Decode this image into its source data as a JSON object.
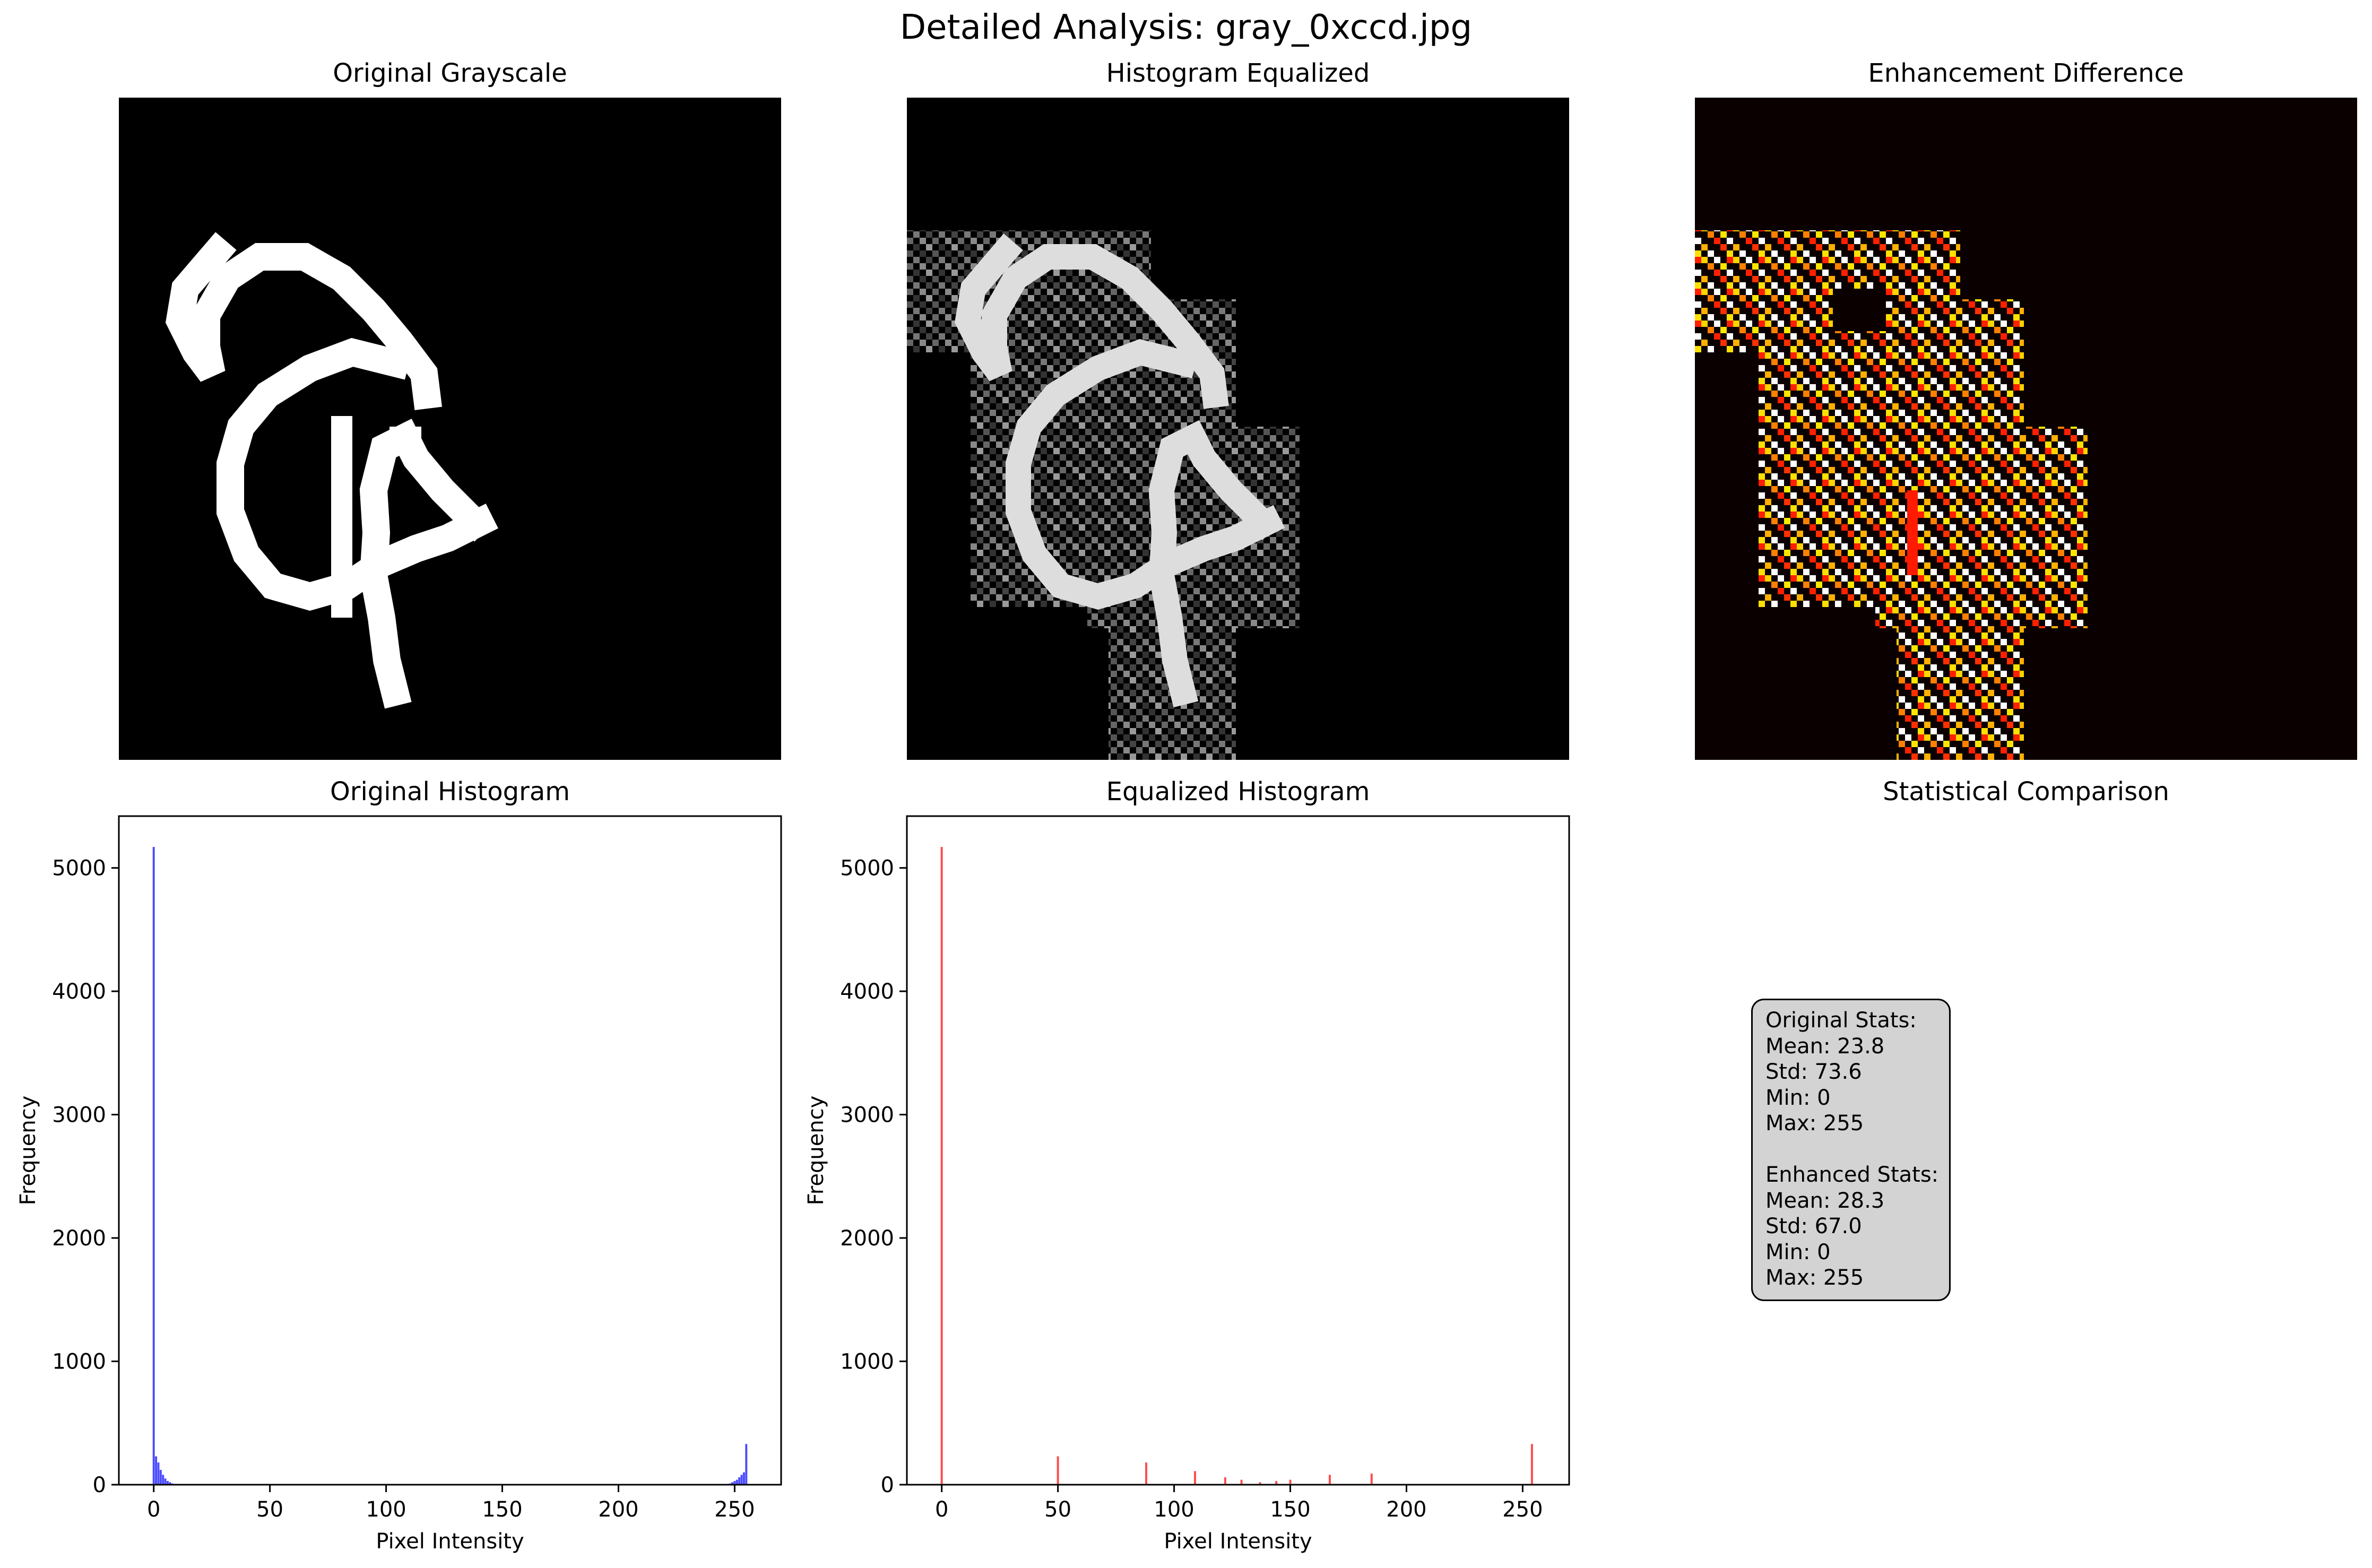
{
  "figure": {
    "title": "Detailed Analysis: gray_0xccd.jpg"
  },
  "panels": {
    "original_image": {
      "title": "Original Grayscale"
    },
    "equalized_image": {
      "title": "Histogram Equalized"
    },
    "difference_image": {
      "title": "Enhancement Difference",
      "colormap": "hot"
    },
    "original_hist": {
      "title": "Original Histogram"
    },
    "equalized_hist": {
      "title": "Equalized Histogram"
    },
    "stats": {
      "title": "Statistical Comparison",
      "lines": [
        "Original Stats:",
        "Mean: 23.8",
        "Std: 73.6",
        "Min: 0",
        "Max: 255",
        "",
        "Enhanced Stats:",
        "Mean: 28.3",
        "Std: 67.0",
        "Min: 0",
        "Max: 255"
      ]
    }
  },
  "colors": {
    "original_hist": "#0000ff",
    "equalized_hist": "#ff0000",
    "stats_box_bg": "#d3d3d3"
  },
  "chart_data": [
    {
      "type": "bar",
      "title": "Original Histogram",
      "xlabel": "Pixel Intensity",
      "ylabel": "Frequency",
      "xlim": [
        -15,
        270
      ],
      "ylim": [
        0,
        5420
      ],
      "xticks": [
        0,
        50,
        100,
        150,
        200,
        250
      ],
      "yticks": [
        0,
        1000,
        2000,
        3000,
        4000,
        5000
      ],
      "grid": false,
      "x": [
        0,
        1,
        2,
        3,
        4,
        5,
        6,
        7,
        8,
        248,
        249,
        250,
        251,
        252,
        253,
        254,
        255
      ],
      "values": [
        5170,
        230,
        180,
        120,
        80,
        50,
        30,
        20,
        10,
        10,
        20,
        30,
        40,
        60,
        80,
        100,
        330
      ]
    },
    {
      "type": "bar",
      "title": "Equalized Histogram",
      "xlabel": "Pixel Intensity",
      "ylabel": "Frequency",
      "xlim": [
        -15,
        270
      ],
      "ylim": [
        0,
        5420
      ],
      "xticks": [
        0,
        50,
        100,
        150,
        200,
        250
      ],
      "yticks": [
        0,
        1000,
        2000,
        3000,
        4000,
        5000
      ],
      "grid": false,
      "x": [
        0,
        50,
        88,
        109,
        122,
        129,
        137,
        144,
        150,
        167,
        185,
        254
      ],
      "values": [
        5170,
        230,
        180,
        110,
        60,
        40,
        20,
        30,
        40,
        80,
        90,
        330
      ]
    }
  ]
}
